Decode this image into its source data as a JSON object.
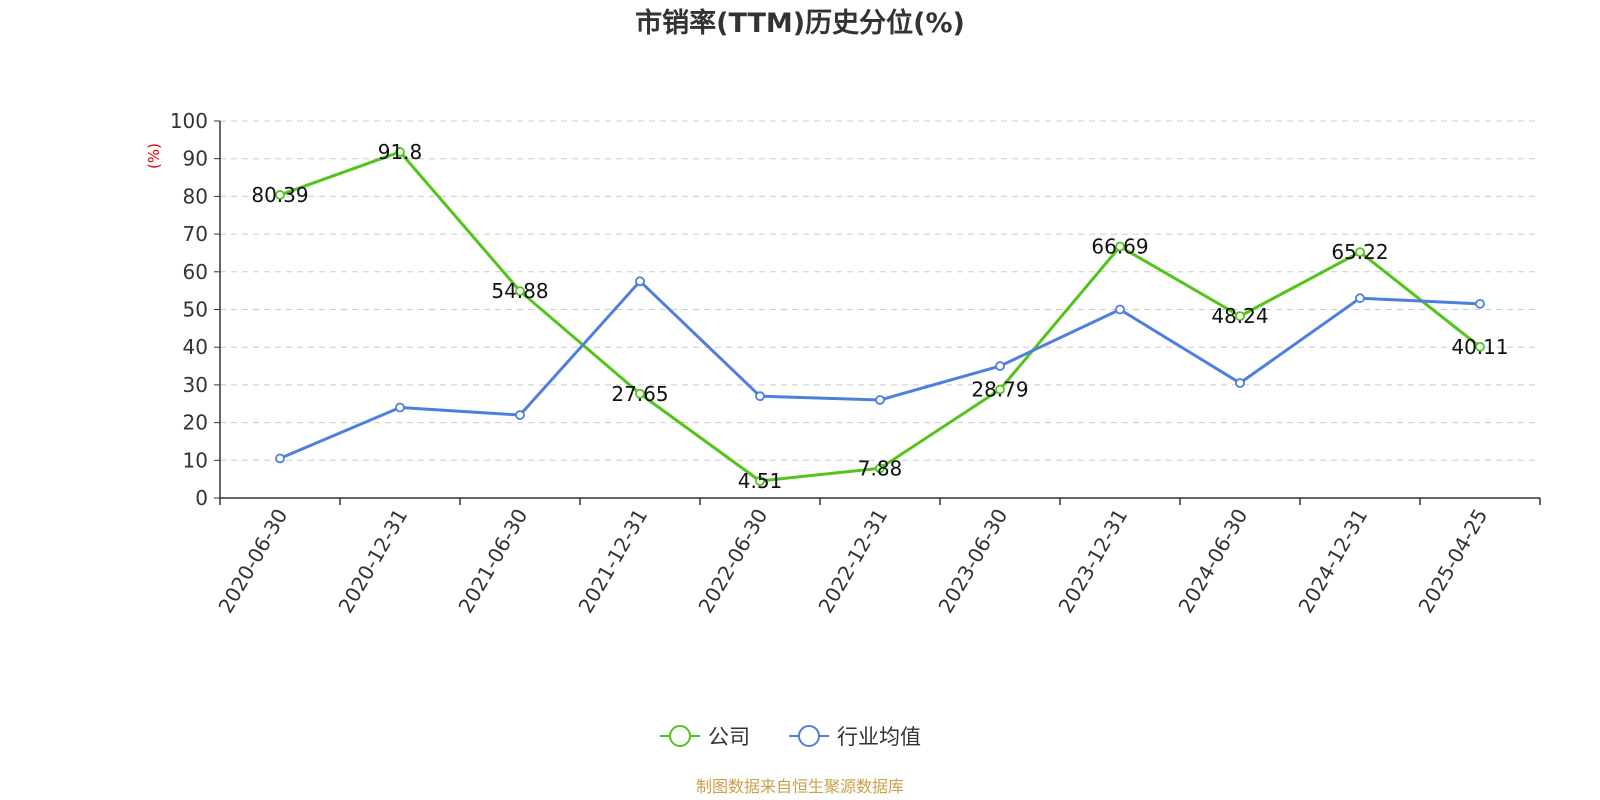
{
  "chart_data": {
    "type": "line",
    "title": "市销率(TTM)历史分位(%)",
    "ylabel": "(%)",
    "xlabel": "",
    "ylim": [
      0,
      100
    ],
    "yticks": [
      0,
      10,
      20,
      30,
      40,
      50,
      60,
      70,
      80,
      90,
      100
    ],
    "grid": true,
    "legend_position": "bottom-center",
    "categories": [
      "2020-06-30",
      "2020-12-31",
      "2021-06-30",
      "2021-12-31",
      "2022-06-30",
      "2022-12-31",
      "2023-06-30",
      "2023-12-31",
      "2024-06-30",
      "2024-12-31",
      "2025-04-25"
    ],
    "series": [
      {
        "name": "公司",
        "color": "#52c41a",
        "values": [
          80.39,
          91.8,
          54.88,
          27.65,
          4.51,
          7.88,
          28.79,
          66.69,
          48.24,
          65.22,
          40.11
        ],
        "labels": [
          "80.39",
          "91.8",
          "54.88",
          "27.65",
          "4.51",
          "7.88",
          "28.79",
          "66.69",
          "48.24",
          "65.22",
          "40.11"
        ]
      },
      {
        "name": "行业均值",
        "color": "#4e7fde",
        "values": [
          10.5,
          24,
          22,
          57.5,
          27,
          26,
          35,
          50,
          30.5,
          53,
          51.5
        ]
      }
    ]
  },
  "source": "制图数据来自恒生聚源数据库"
}
